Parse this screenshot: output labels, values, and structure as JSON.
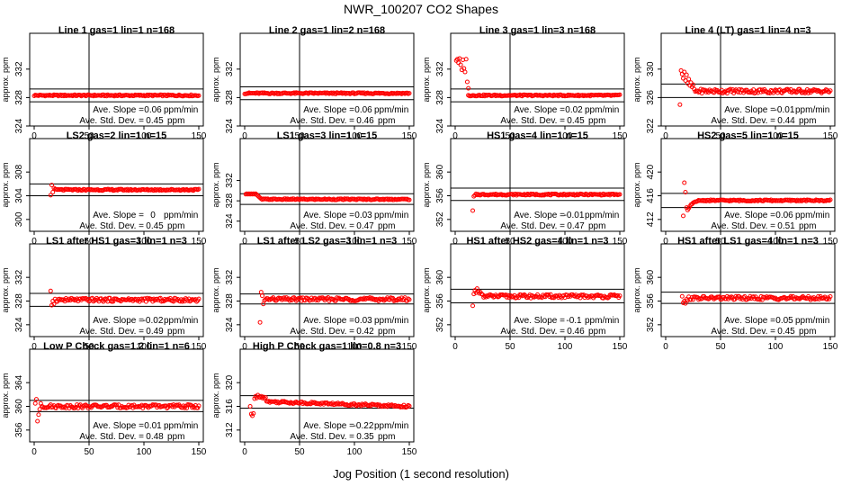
{
  "title": "NWR_100207  CO2 Shapes",
  "xlabel": "Jog Position (1 second resolution)",
  "colors": {
    "points": "#ff0000",
    "axes": "#000000"
  },
  "chart_data": [
    {
      "type": "scatter",
      "title": "Line 1 gas=1 lin=1 n=168",
      "ylabel": "approx. ppm",
      "xlim": [
        0,
        150
      ],
      "xticks": [
        0,
        50,
        100,
        150
      ],
      "ylim": [
        324,
        334
      ],
      "yticks": [
        324,
        328,
        332
      ],
      "band": [
        327.4,
        329.2
      ],
      "vline": 50,
      "slope_label": "Ave. Slope =",
      "slope": "0.06",
      "slope_unit": "ppm/min",
      "std_label": "Ave. Std. Dev. =",
      "std": "0.45",
      "std_unit": "ppm",
      "x_range": [
        0,
        150
      ],
      "level": 328.3,
      "noise": 0.1,
      "start": []
    },
    {
      "type": "scatter",
      "title": "Line 2 gas=1 lin=2 n=168",
      "ylabel": "approx. ppm",
      "xlim": [
        0,
        150
      ],
      "xticks": [
        0,
        50,
        100,
        150
      ],
      "ylim": [
        324,
        334
      ],
      "yticks": [
        324,
        328,
        332
      ],
      "band": [
        327.7,
        329.5
      ],
      "vline": 50,
      "slope_label": "Ave. Slope =",
      "slope": "0.06",
      "slope_unit": "ppm/min",
      "std_label": "Ave. Std. Dev. =",
      "std": "0.46",
      "std_unit": "ppm",
      "x_range": [
        0,
        150
      ],
      "level": 328.6,
      "noise": 0.1,
      "start": []
    },
    {
      "type": "scatter",
      "title": "Line 3 gas=1 lin=3 n=168",
      "ylabel": "approx. ppm",
      "xlim": [
        0,
        150
      ],
      "xticks": [
        0,
        50,
        100,
        150
      ],
      "ylim": [
        324,
        334
      ],
      "yticks": [
        324,
        328,
        332
      ],
      "band": [
        327.4,
        329.2
      ],
      "vline": 50,
      "slope_label": "Ave. Slope =",
      "slope": "0.02",
      "slope_unit": "ppm/min",
      "std_label": "Ave. Std. Dev. =",
      "std": "0.45",
      "std_unit": "ppm",
      "x_range": [
        12,
        150
      ],
      "level": 328.3,
      "noise": 0.1,
      "start": [
        [
          1,
          333.2
        ],
        [
          2,
          333.4
        ],
        [
          3,
          332.9
        ],
        [
          4,
          333.5
        ],
        [
          5,
          332.6
        ],
        [
          6,
          331.9
        ],
        [
          7,
          333.3
        ],
        [
          8,
          332.1
        ],
        [
          9,
          331.6
        ],
        [
          10,
          333.4
        ],
        [
          11,
          330.2
        ],
        [
          12,
          329.3
        ]
      ]
    },
    {
      "type": "scatter",
      "title": "Line 4 (LT) gas=1 lin=4 n=3",
      "ylabel": "approx. ppm",
      "xlim": [
        0,
        150
      ],
      "xticks": [
        0,
        50,
        100,
        150
      ],
      "ylim": [
        322,
        332
      ],
      "yticks": [
        322,
        326,
        330
      ],
      "band": [
        326.0,
        327.9
      ],
      "vline": 50,
      "slope_label": "Ave. Slope =",
      "slope": "-0.01",
      "slope_unit": "ppm/min",
      "std_label": "Ave. Std. Dev. =",
      "std": "0.44",
      "std_unit": "ppm",
      "x_range": [
        26,
        150
      ],
      "level": 326.9,
      "noise": 0.3,
      "start": [
        [
          13,
          325.0
        ],
        [
          14,
          329.8
        ],
        [
          15,
          329.3
        ],
        [
          16,
          328.7
        ],
        [
          17,
          329.6
        ],
        [
          18,
          328.4
        ],
        [
          19,
          329.2
        ],
        [
          20,
          328.0
        ],
        [
          21,
          328.6
        ],
        [
          22,
          327.7
        ],
        [
          23,
          328.1
        ],
        [
          24,
          327.5
        ],
        [
          25,
          327.8
        ]
      ]
    },
    {
      "type": "scatter",
      "title": "LS2 gas=2 lin=1 n=15",
      "ylabel": "approx. ppm",
      "xlim": [
        0,
        150
      ],
      "xticks": [
        0,
        50,
        100,
        150
      ],
      "ylim": [
        298,
        310
      ],
      "yticks": [
        300,
        304,
        308
      ],
      "band": [
        304.0,
        306.0
      ],
      "vline": 50,
      "slope_label": "Ave. Slope =",
      "slope": "0",
      "slope_unit": "ppm/min",
      "std_label": "Ave. Std. Dev. =",
      "std": "0.45",
      "std_unit": "ppm",
      "x_range": [
        20,
        150
      ],
      "level": 305.0,
      "noise": 0.12,
      "start": [
        [
          15,
          304.1
        ],
        [
          16,
          305.8
        ],
        [
          17,
          304.6
        ],
        [
          18,
          305.3
        ],
        [
          19,
          305.1
        ]
      ]
    },
    {
      "type": "scatter",
      "title": "LS1 gas=3 lin=1 n=15",
      "ylabel": "approx. ppm",
      "xlim": [
        0,
        150
      ],
      "xticks": [
        0,
        50,
        100,
        150
      ],
      "ylim": [
        322,
        336
      ],
      "yticks": [
        324,
        328,
        332
      ],
      "band": [
        327.3,
        329.4
      ],
      "vline": 50,
      "slope_label": "Ave. Slope =",
      "slope": "0.03",
      "slope_unit": "ppm/min",
      "std_label": "Ave. Std. Dev. =",
      "std": "0.47",
      "std_unit": "ppm",
      "x_range": [
        16,
        150
      ],
      "level": 328.3,
      "noise": 0.12,
      "start": [
        [
          1,
          329.3
        ],
        [
          2,
          329.4
        ],
        [
          3,
          329.3
        ],
        [
          4,
          329.4
        ],
        [
          5,
          329.3
        ],
        [
          6,
          329.4
        ],
        [
          7,
          329.3
        ],
        [
          8,
          329.4
        ],
        [
          9,
          329.3
        ],
        [
          10,
          329.4
        ],
        [
          11,
          329.2
        ],
        [
          12,
          329.0
        ],
        [
          13,
          328.8
        ],
        [
          14,
          328.6
        ],
        [
          15,
          328.4
        ]
      ]
    },
    {
      "type": "scatter",
      "title": "HS1 gas=4 lin=1 n=15",
      "ylabel": "approx. ppm",
      "xlim": [
        0,
        150
      ],
      "xticks": [
        0,
        50,
        100,
        150
      ],
      "ylim": [
        350,
        362
      ],
      "yticks": [
        352,
        356,
        360
      ],
      "band": [
        355.2,
        357.3
      ],
      "vline": 50,
      "slope_label": "Ave. Slope =",
      "slope": "-0.01",
      "slope_unit": "ppm/min",
      "std_label": "Ave. Std. Dev. =",
      "std": "0.47",
      "std_unit": "ppm",
      "x_range": [
        19,
        150
      ],
      "level": 356.2,
      "noise": 0.12,
      "start": [
        [
          16,
          353.5
        ],
        [
          17,
          355.9
        ],
        [
          18,
          356.1
        ]
      ]
    },
    {
      "type": "scatter",
      "title": "HS2 gas=5 lin=1 n=15",
      "ylabel": "approx. ppm",
      "xlim": [
        0,
        150
      ],
      "xticks": [
        0,
        50,
        100,
        150
      ],
      "ylim": [
        410,
        422
      ],
      "yticks": [
        412,
        416,
        420
      ],
      "band": [
        414.0,
        416.4
      ],
      "vline": 50,
      "slope_label": "Ave. Slope =",
      "slope": "0.06",
      "slope_unit": "ppm/min",
      "std_label": "Ave. Std. Dev. =",
      "std": "0.51",
      "std_unit": "ppm",
      "x_range": [
        30,
        150
      ],
      "level": 415.2,
      "noise": 0.12,
      "start": [
        [
          16,
          412.6
        ],
        [
          17,
          418.2
        ],
        [
          18,
          416.6
        ],
        [
          19,
          414.0
        ],
        [
          20,
          413.6
        ],
        [
          21,
          413.9
        ],
        [
          22,
          414.2
        ],
        [
          23,
          414.5
        ],
        [
          24,
          414.6
        ],
        [
          25,
          414.8
        ],
        [
          26,
          414.9
        ],
        [
          27,
          415.0
        ],
        [
          28,
          415.0
        ],
        [
          29,
          415.1
        ]
      ]
    },
    {
      "type": "scatter",
      "title": "LS1 after HS1 gas=3 lin=1 n=3",
      "ylabel": "approx. ppm",
      "xlim": [
        0,
        150
      ],
      "xticks": [
        0,
        50,
        100,
        150
      ],
      "ylim": [
        322,
        334
      ],
      "yticks": [
        324,
        328,
        332
      ],
      "band": [
        327.1,
        329.3
      ],
      "vline": 50,
      "slope_label": "Ave. Slope =",
      "slope": "-0.02",
      "slope_unit": "ppm/min",
      "std_label": "Ave. Std. Dev. =",
      "std": "0.49",
      "std_unit": "ppm",
      "x_range": [
        19,
        150
      ],
      "level": 328.2,
      "noise": 0.3,
      "start": [
        [
          15,
          329.7
        ],
        [
          16,
          327.3
        ],
        [
          17,
          328.0
        ],
        [
          18,
          327.5
        ]
      ]
    },
    {
      "type": "scatter",
      "title": "LS1 after LS2 gas=3 lin=1 n=3",
      "ylabel": "approx. ppm",
      "xlim": [
        0,
        150
      ],
      "xticks": [
        0,
        50,
        100,
        150
      ],
      "ylim": [
        322,
        334
      ],
      "yticks": [
        324,
        328,
        332
      ],
      "band": [
        327.5,
        329.2
      ],
      "vline": 50,
      "slope_label": "Ave. Slope =",
      "slope": "0.03",
      "slope_unit": "ppm/min",
      "std_label": "Ave. Std. Dev. =",
      "std": "0.42",
      "std_unit": "ppm",
      "x_range": [
        19,
        150
      ],
      "level": 328.3,
      "noise": 0.3,
      "start": [
        [
          14,
          324.4
        ],
        [
          15,
          329.5
        ],
        [
          16,
          328.9
        ],
        [
          17,
          327.5
        ],
        [
          18,
          328.1
        ]
      ]
    },
    {
      "type": "scatter",
      "title": "HS1 after HS2 gas=4 lin=1 n=3",
      "ylabel": "approx. ppm",
      "xlim": [
        0,
        150
      ],
      "xticks": [
        0,
        50,
        100,
        150
      ],
      "ylim": [
        350,
        362
      ],
      "yticks": [
        352,
        356,
        360
      ],
      "band": [
        355.7,
        358.0
      ],
      "vline": 50,
      "slope_label": "Ave. Slope =",
      "slope": "-0.1",
      "slope_unit": "ppm/min",
      "std_label": "Ave. Std. Dev. =",
      "std": "0.46",
      "std_unit": "ppm",
      "x_range": [
        25,
        150
      ],
      "level": 356.8,
      "noise": 0.3,
      "start": [
        [
          16,
          355.2
        ],
        [
          17,
          357.2
        ],
        [
          18,
          357.8
        ],
        [
          19,
          357.4
        ],
        [
          20,
          358.1
        ],
        [
          21,
          357.6
        ],
        [
          22,
          357.3
        ],
        [
          23,
          357.5
        ],
        [
          24,
          357.2
        ]
      ]
    },
    {
      "type": "scatter",
      "title": "HS1 after LS1 gas=4 lin=1 n=3",
      "ylabel": "approx. ppm",
      "xlim": [
        0,
        150
      ],
      "xticks": [
        0,
        50,
        100,
        150
      ],
      "ylim": [
        350,
        362
      ],
      "yticks": [
        352,
        356,
        360
      ],
      "band": [
        355.6,
        357.5
      ],
      "vline": 50,
      "slope_label": "Ave. Slope =",
      "slope": "0.05",
      "slope_unit": "ppm/min",
      "std_label": "Ave. Std. Dev. =",
      "std": "0.45",
      "std_unit": "ppm",
      "x_range": [
        21,
        150
      ],
      "level": 356.5,
      "noise": 0.3,
      "start": [
        [
          15,
          356.8
        ],
        [
          16,
          355.7
        ],
        [
          17,
          356.0
        ],
        [
          18,
          355.6
        ],
        [
          19,
          356.3
        ],
        [
          20,
          356.1
        ]
      ]
    },
    {
      "type": "scatter",
      "title": "Low P Check gas=1.2 lin=1 n=6",
      "ylabel": "approx. ppm",
      "xlim": [
        0,
        150
      ],
      "xticks": [
        0,
        50,
        100,
        150
      ],
      "ylim": [
        354,
        366
      ],
      "yticks": [
        356,
        360,
        364
      ],
      "band": [
        359.1,
        361.0
      ],
      "vline": 50,
      "slope_label": "Ave. Slope =",
      "slope": "0.01",
      "slope_unit": "ppm/min",
      "std_label": "Ave. Std. Dev. =",
      "std": "0.48",
      "std_unit": "ppm",
      "x_range": [
        9,
        150
      ],
      "level": 360.0,
      "noise": 0.3,
      "start": [
        [
          1,
          360.5
        ],
        [
          2,
          361.2
        ],
        [
          3,
          357.5
        ],
        [
          4,
          358.6
        ],
        [
          5,
          359.5
        ],
        [
          6,
          360.5
        ],
        [
          7,
          360.0
        ],
        [
          8,
          359.9
        ]
      ]
    },
    {
      "type": "scatter",
      "title": "High P Check gas=1 lin=0.8 n=3",
      "ylabel": "approx. ppm",
      "xlim": [
        0,
        150
      ],
      "xticks": [
        0,
        50,
        100,
        150
      ],
      "ylim": [
        310,
        322
      ],
      "yticks": [
        312,
        316,
        320
      ],
      "band": [
        315.7,
        317.8
      ],
      "vline": 50,
      "slope_label": "Ave. Slope =",
      "slope": "-0.22",
      "slope_unit": "ppm/min",
      "std_label": "Ave. Std. Dev. =",
      "std": "0.35",
      "std_unit": "ppm",
      "x_range": [
        20,
        150
      ],
      "level": 316.8,
      "noise": 0.2,
      "trend": -0.8,
      "start": [
        [
          5,
          316.0
        ],
        [
          6,
          314.7
        ],
        [
          7,
          314.4
        ],
        [
          8,
          314.8
        ],
        [
          9,
          317.3
        ],
        [
          10,
          317.7
        ],
        [
          11,
          317.4
        ],
        [
          12,
          317.9
        ],
        [
          13,
          317.6
        ],
        [
          14,
          317.5
        ],
        [
          15,
          317.7
        ],
        [
          16,
          317.4
        ],
        [
          17,
          317.6
        ],
        [
          18,
          317.3
        ],
        [
          19,
          317.5
        ]
      ]
    }
  ]
}
